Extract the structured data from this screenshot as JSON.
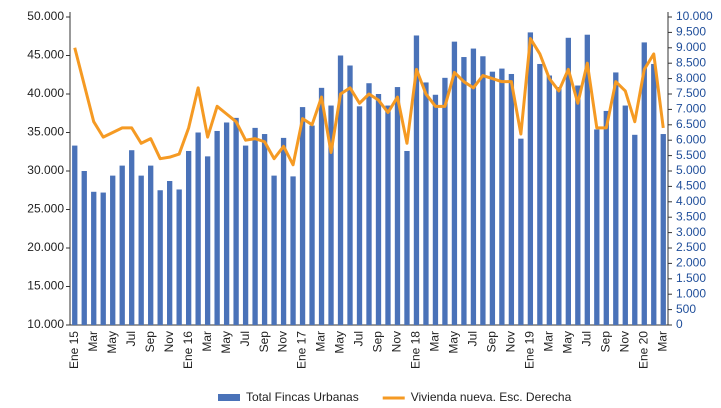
{
  "chart_data": {
    "type": "bar-line",
    "categories": [
      "Ene 15",
      null,
      "Mar",
      null,
      "May",
      null,
      "Jul",
      null,
      "Sep",
      null,
      "Nov",
      null,
      "Ene 16",
      null,
      "Mar",
      null,
      "May",
      null,
      "Jul",
      null,
      "Sep",
      null,
      "Nov",
      null,
      "Ene 17",
      null,
      "Mar",
      null,
      "May",
      null,
      "Jul",
      null,
      "Sep",
      null,
      "Nov",
      null,
      "Ene 18",
      null,
      "Mar",
      null,
      "May",
      null,
      "Jul",
      null,
      "Sep",
      null,
      "Nov",
      null,
      "Ene 19",
      null,
      "Mar",
      null,
      "May",
      null,
      "Jul",
      null,
      "Sep",
      null,
      "Nov",
      null,
      "Ene 20",
      null,
      "Mar"
    ],
    "series": [
      {
        "name": "Total Fincas Urbanas",
        "color": "#4a72b8",
        "type": "bar",
        "values": [
          33300,
          30000,
          27300,
          27200,
          29400,
          30700,
          32700,
          29400,
          30700,
          27500,
          28700,
          27600,
          32600,
          35000,
          31900,
          35200,
          36300,
          36900,
          33300,
          35600,
          34800,
          29400,
          34300,
          29300,
          38300,
          35900,
          40800,
          38500,
          45000,
          43700,
          38400,
          41400,
          40000,
          38500,
          40900,
          32600,
          47600,
          41500,
          39900,
          42100,
          46800,
          44800,
          45900,
          44900,
          42900,
          43300,
          42600,
          34200,
          48000,
          43900,
          42400,
          40900,
          47300,
          41100,
          47700,
          35400,
          37800,
          42800,
          38500,
          34700,
          46700,
          43900,
          34800
        ]
      },
      {
        "name": "Vivienda nueva. Esc. Derecha",
        "color": "#f59a23",
        "type": "line",
        "axis": "y2",
        "values": [
          9000,
          7800,
          6600,
          6100,
          6250,
          6400,
          6400,
          5900,
          6050,
          5400,
          5450,
          5550,
          6400,
          7700,
          6100,
          7100,
          6850,
          6600,
          6000,
          6050,
          5950,
          5400,
          5800,
          5200,
          6700,
          6500,
          7400,
          5600,
          7500,
          7700,
          7200,
          7500,
          7300,
          6900,
          7400,
          5900,
          8300,
          7500,
          7100,
          7100,
          8200,
          7900,
          7700,
          8100,
          8000,
          7900,
          7900,
          6200,
          9300,
          8800,
          8000,
          7600,
          8300,
          7200,
          8500,
          6400,
          6400,
          7900,
          7600,
          6600,
          8300,
          8800,
          6400
        ]
      }
    ],
    "ylim": [
      10000,
      50000
    ],
    "yticks": [
      {
        "value": 10000,
        "label": "10.000"
      },
      {
        "value": 15000,
        "label": "15.000"
      },
      {
        "value": 20000,
        "label": "20.000"
      },
      {
        "value": 25000,
        "label": "25.000"
      },
      {
        "value": 30000,
        "label": "30.000"
      },
      {
        "value": 35000,
        "label": "35.000"
      },
      {
        "value": 40000,
        "label": "40.000"
      },
      {
        "value": 45000,
        "label": "45.000"
      },
      {
        "value": 50000,
        "label": "50.000"
      }
    ],
    "y2lim": [
      0,
      10000
    ],
    "y2ticks": [
      0,
      500,
      {
        "value": 1000,
        "label": "1.000"
      },
      {
        "value": 1500,
        "label": "1.500"
      },
      {
        "value": 2000,
        "label": "2.000"
      },
      {
        "value": 2500,
        "label": "2.500"
      },
      {
        "value": 3000,
        "label": "3.000"
      },
      {
        "value": 3500,
        "label": "3.500"
      },
      {
        "value": 4000,
        "label": "4.000"
      },
      {
        "value": 4500,
        "label": "4.500"
      },
      {
        "value": 5000,
        "label": "5.000"
      },
      {
        "value": 5500,
        "label": "5.500"
      },
      {
        "value": 6000,
        "label": "6.000"
      },
      {
        "value": 6500,
        "label": "6.500"
      },
      {
        "value": 7000,
        "label": "7.000"
      },
      {
        "value": 7500,
        "label": "7.500"
      },
      {
        "value": 8000,
        "label": "8.000"
      },
      {
        "value": 8500,
        "label": "8.500"
      },
      {
        "value": 9000,
        "label": "9.000"
      },
      {
        "value": 9500,
        "label": "9.500"
      },
      {
        "value": 10000,
        "label": "10.000"
      }
    ],
    "grid": false,
    "legend": "bottom"
  }
}
